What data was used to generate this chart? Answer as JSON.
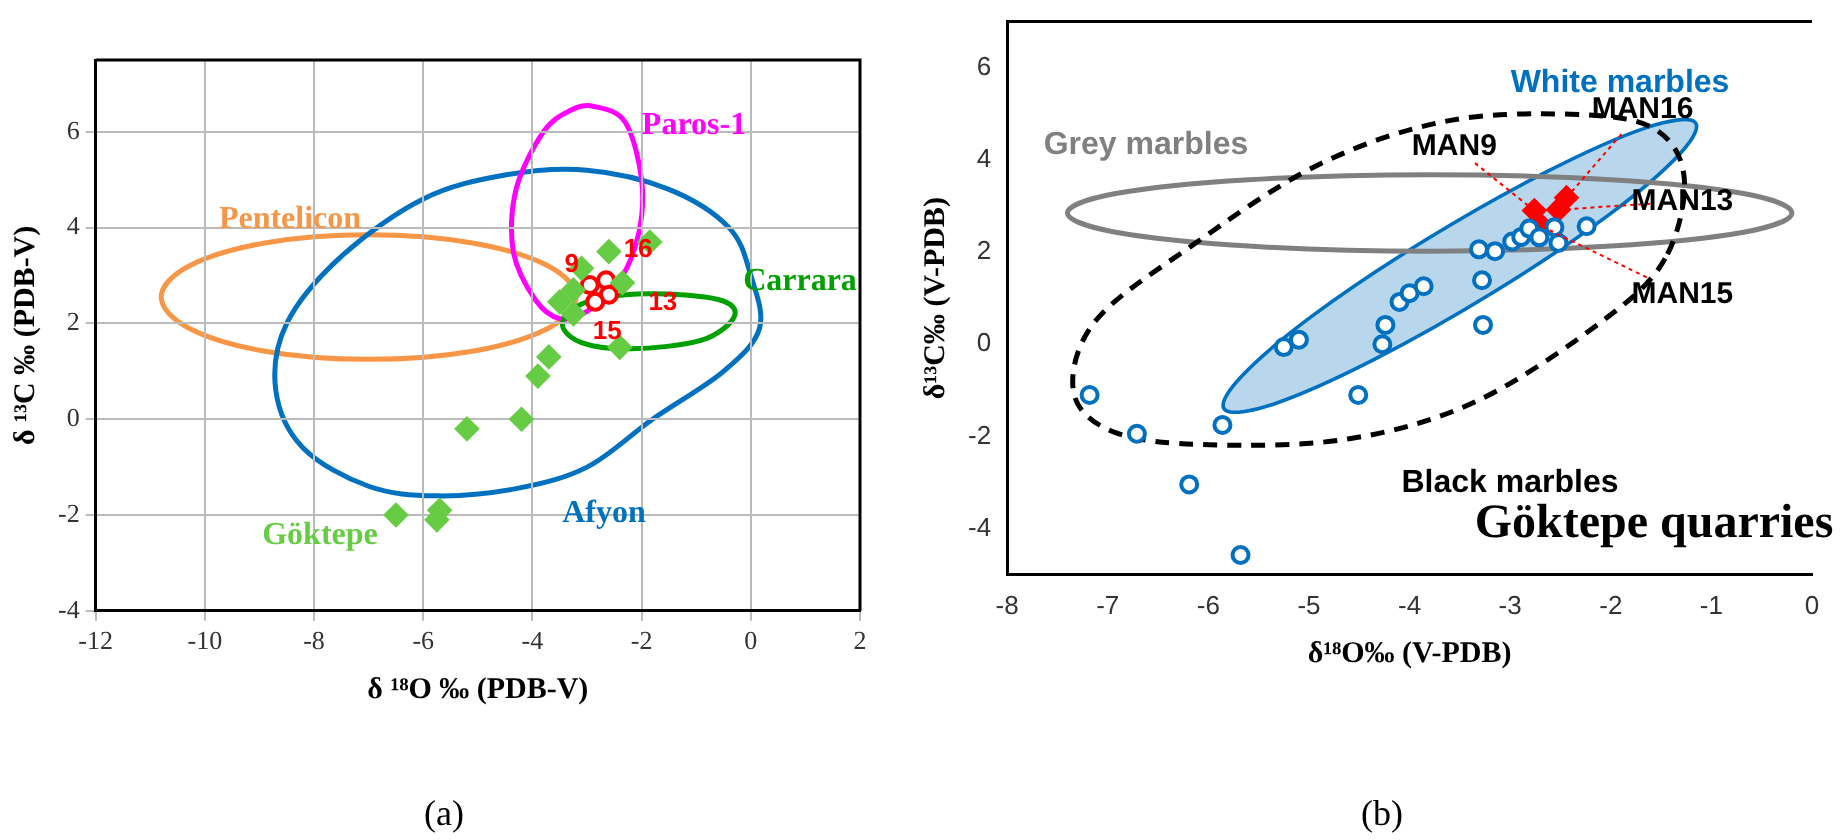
{
  "chart_data": [
    {
      "type": "scatter",
      "xlabel": "δ ¹⁸O ‰ (PDB-V)",
      "ylabel": "δ ¹³C ‰ (PDB-V)",
      "xlim": [
        -12,
        2
      ],
      "xticks": [
        -12,
        -10,
        -8,
        -6,
        -4,
        -2,
        0,
        2
      ],
      "ylim": [
        -4,
        7.5
      ],
      "yticks": [
        -4,
        -2,
        0,
        2,
        4,
        6
      ],
      "grid": true,
      "annotations": [
        {
          "text": "9",
          "x": -2.95,
          "y": 2.8
        },
        {
          "text": "16",
          "x": -2.65,
          "y": 2.9
        },
        {
          "text": "13",
          "x": -2.6,
          "y": 2.6
        },
        {
          "text": "15",
          "x": -2.85,
          "y": 2.45
        },
        "Pentelicon",
        "Paros-1",
        "Afyon",
        "Carrara",
        "Göktepe",
        "(a)"
      ],
      "series": [
        {
          "type": "scatter",
          "marker": "diamond",
          "color": "#66cc44",
          "x": [
            -1.85,
            -2.6,
            -2.4,
            -3.7,
            -3.9,
            -4.2,
            -5.2,
            -5.7,
            -5.75,
            -6.5,
            -3.5,
            -3.25,
            -3.25,
            -3.1,
            -2.35
          ],
          "values": [
            3.7,
            3.5,
            1.5,
            1.3,
            0.9,
            0.0,
            -0.2,
            -1.9,
            -2.1,
            -2.0,
            2.45,
            2.2,
            2.7,
            3.15,
            2.85
          ]
        },
        {
          "type": "scatter",
          "marker": "circle",
          "color": "#ff0000",
          "x": [
            -2.95,
            -2.65,
            -2.6,
            -2.85
          ],
          "values": [
            2.8,
            2.9,
            2.6,
            2.45
          ]
        }
      ]
    },
    {
      "type": "scatter",
      "xlabel": "δ¹⁸O‰ (V-PDB)",
      "ylabel": "δ¹³C‰ (V-PDB)",
      "xlim": [
        -8,
        0
      ],
      "xticks": [
        -8,
        -7,
        -6,
        -5,
        -4,
        -3,
        -2,
        -1,
        0
      ],
      "ylim": [
        -5,
        7
      ],
      "yticks": [
        -4,
        -2,
        0,
        2,
        4,
        6
      ],
      "annotations": [
        {
          "text": "MAN9",
          "x": -2.76,
          "y": 2.9
        },
        {
          "text": "MAN16",
          "x": -2.44,
          "y": 3.18
        },
        {
          "text": "MAN13",
          "x": -2.52,
          "y": 2.92
        },
        {
          "text": "MAN15",
          "x": -2.68,
          "y": 2.55
        },
        "White marbles",
        "Grey marbles",
        "Black marbles",
        "Göktepe quarries",
        "(b)"
      ],
      "series": [
        {
          "type": "scatter",
          "marker": "circle",
          "color": "#0070c0",
          "x": [
            -7.18,
            -6.71,
            -6.19,
            -5.68,
            -5.86,
            -4.51,
            -5.25,
            -5.1,
            -4.27,
            -4.24,
            -4.1,
            -4.0,
            -3.86,
            -3.28,
            -3.27,
            -3.31,
            -3.15,
            -2.98,
            -2.89,
            -2.81,
            -2.71,
            -2.52,
            -2.56,
            -2.24
          ],
          "values": [
            -1.1,
            -1.94,
            -3.04,
            -4.57,
            -1.75,
            -1.1,
            -0.06,
            0.1,
            0.0,
            0.42,
            0.92,
            1.11,
            1.26,
            1.39,
            0.42,
            2.06,
            2.02,
            2.23,
            2.33,
            2.51,
            2.32,
            2.2,
            2.54,
            2.56
          ]
        },
        {
          "type": "scatter",
          "marker": "diamond",
          "color": "#ff0000",
          "x": [
            -2.76,
            -2.44,
            -2.52,
            -2.68
          ],
          "values": [
            2.9,
            3.18,
            2.92,
            2.55
          ]
        }
      ]
    }
  ]
}
